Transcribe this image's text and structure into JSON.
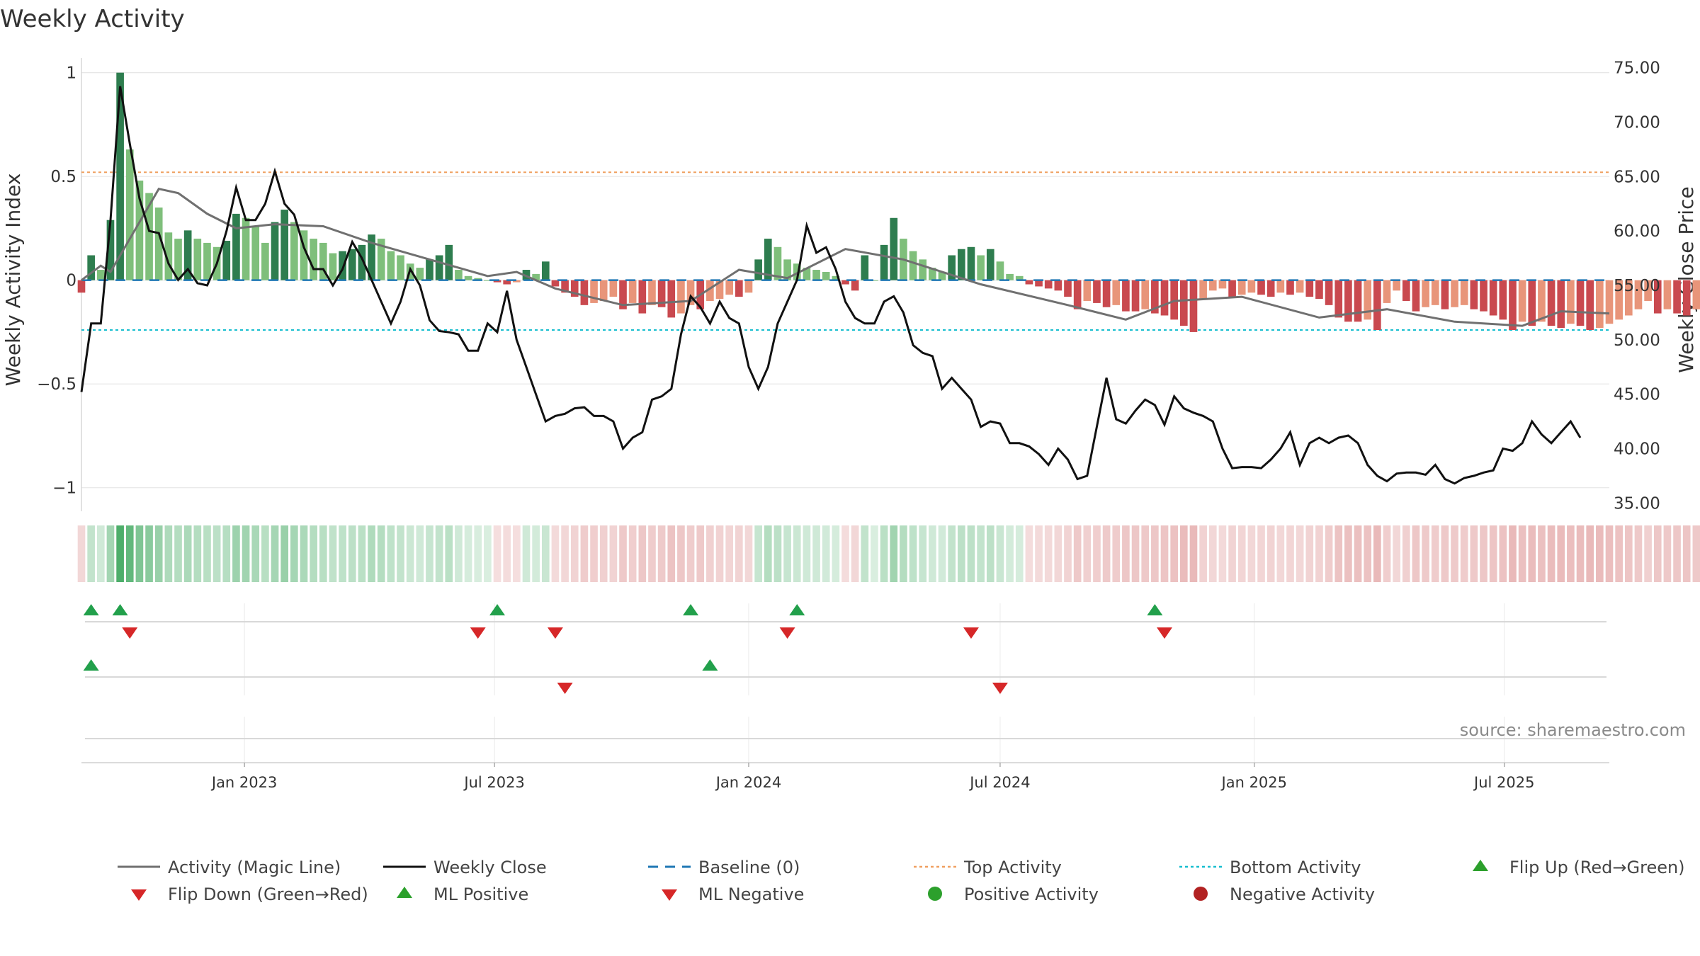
{
  "chart_data": {
    "type": "bar",
    "title": "Weekly Activity",
    "ylabel": "Weekly Activity Index",
    "y2label": "Weekly Close Price",
    "ylim": [
      -1.1,
      1.05
    ],
    "y2lim": [
      34.5,
      75.5
    ],
    "yticks": [
      {
        "value": 1,
        "label": "1"
      },
      {
        "value": 0.5,
        "label": "0.5"
      },
      {
        "value": 0,
        "label": "0"
      },
      {
        "value": -0.5,
        "label": "−0.5"
      },
      {
        "value": -1,
        "label": "−1"
      }
    ],
    "y2ticks": [
      {
        "value": 75,
        "label": "75.00"
      },
      {
        "value": 70,
        "label": "70.00"
      },
      {
        "value": 65,
        "label": "65.00"
      },
      {
        "value": 60,
        "label": "60.00"
      },
      {
        "value": 55,
        "label": "55.00"
      },
      {
        "value": 50,
        "label": "50.00"
      },
      {
        "value": 45,
        "label": "45.00"
      },
      {
        "value": 40,
        "label": "40.00"
      },
      {
        "value": 35,
        "label": "35.00"
      }
    ],
    "x_start": "2022-09-05",
    "x_end": "2025-09-15",
    "xticks": [
      {
        "date": "2023-01-01",
        "label": "Jan 2023"
      },
      {
        "date": "2023-07-01",
        "label": "Jul 2023"
      },
      {
        "date": "2024-01-01",
        "label": "Jan 2024"
      },
      {
        "date": "2024-07-01",
        "label": "Jul 2024"
      },
      {
        "date": "2025-01-01",
        "label": "Jan 2025"
      },
      {
        "date": "2025-07-01",
        "label": "Jul 2025"
      }
    ],
    "thresholds": {
      "top": 0.52,
      "bottom": -0.24,
      "baseline": 0
    },
    "series": [
      {
        "name": "Weekly Activity",
        "start": "2022-09-05",
        "step_days": 7,
        "values": [
          -0.06,
          0.12,
          0.05,
          0.29,
          1.0,
          0.63,
          0.48,
          0.42,
          0.35,
          0.23,
          0.2,
          0.24,
          0.2,
          0.18,
          0.16,
          0.19,
          0.32,
          0.3,
          0.26,
          0.18,
          0.28,
          0.34,
          0.28,
          0.24,
          0.2,
          0.18,
          0.13,
          0.14,
          0.15,
          0.17,
          0.22,
          0.2,
          0.14,
          0.12,
          0.08,
          0.06,
          0.1,
          0.12,
          0.17,
          0.05,
          0.02,
          0.01,
          0.0,
          -0.01,
          -0.02,
          -0.01,
          0.05,
          0.03,
          0.09,
          -0.03,
          -0.06,
          -0.08,
          -0.12,
          -0.11,
          -0.1,
          -0.08,
          -0.14,
          -0.11,
          -0.16,
          -0.12,
          -0.13,
          -0.18,
          -0.16,
          -0.12,
          -0.14,
          -0.1,
          -0.09,
          -0.07,
          -0.08,
          -0.06,
          0.1,
          0.2,
          0.16,
          0.1,
          0.08,
          0.06,
          0.05,
          0.04,
          0.02,
          -0.02,
          -0.05,
          0.12,
          0.0,
          0.17,
          0.3,
          0.2,
          0.14,
          0.1,
          0.06,
          0.04,
          0.12,
          0.15,
          0.16,
          0.12,
          0.15,
          0.09,
          0.03,
          0.02,
          -0.02,
          -0.03,
          -0.04,
          -0.05,
          -0.08,
          -0.14,
          -0.1,
          -0.11,
          -0.13,
          -0.12,
          -0.15,
          -0.15,
          -0.14,
          -0.16,
          -0.17,
          -0.19,
          -0.22,
          -0.25,
          -0.09,
          -0.05,
          -0.04,
          -0.08,
          -0.07,
          -0.06,
          -0.07,
          -0.08,
          -0.06,
          -0.07,
          -0.06,
          -0.08,
          -0.09,
          -0.12,
          -0.18,
          -0.2,
          -0.2,
          -0.19,
          -0.24,
          -0.11,
          -0.05,
          -0.1,
          -0.15,
          -0.13,
          -0.12,
          -0.14,
          -0.13,
          -0.12,
          -0.14,
          -0.15,
          -0.17,
          -0.19,
          -0.24,
          -0.2,
          -0.22,
          -0.2,
          -0.22,
          -0.23,
          -0.21,
          -0.22,
          -0.24,
          -0.23,
          -0.21,
          -0.19,
          -0.17,
          -0.14,
          -0.1,
          -0.16,
          -0.14,
          -0.16,
          -0.17,
          -0.14,
          -0.19
        ]
      },
      {
        "name": "Weekly Close",
        "start": "2022-09-05",
        "step_days": 7,
        "values": [
          45.2,
          51.5,
          51.5,
          61.0,
          73.3,
          68.0,
          63.0,
          60.0,
          59.8,
          57.0,
          55.5,
          56.5,
          55.2,
          55.0,
          57.0,
          60.0,
          64.0,
          61.0,
          61.0,
          62.5,
          65.5,
          62.5,
          61.5,
          58.5,
          56.5,
          56.5,
          55.0,
          56.5,
          59.0,
          57.5,
          55.5,
          53.5,
          51.5,
          53.5,
          56.5,
          55.0,
          51.8,
          50.8,
          50.7,
          50.5,
          49.0,
          49.0,
          51.5,
          50.7,
          54.5,
          50.0,
          47.5,
          45.0,
          42.5,
          43.0,
          43.2,
          43.7,
          43.8,
          43.0,
          43.0,
          42.5,
          40.0,
          41.0,
          41.5,
          44.5,
          44.8,
          45.5,
          50.5,
          54.0,
          53.0,
          51.5,
          53.5,
          52.0,
          51.5,
          47.5,
          45.5,
          47.5,
          51.5,
          53.5,
          55.5,
          60.5,
          58.0,
          58.5,
          56.5,
          53.5,
          52.0,
          51.5,
          51.5,
          53.5,
          54.0,
          52.5,
          49.5,
          48.8,
          48.5,
          45.5,
          46.5,
          45.5,
          44.5,
          42.0,
          42.5,
          42.3,
          40.5,
          40.5,
          40.2,
          39.5,
          38.5,
          40.0,
          39.0,
          37.2,
          37.5,
          42.0,
          46.5,
          42.7,
          42.3,
          43.5,
          44.5,
          44.0,
          42.2,
          44.8,
          43.7,
          43.3,
          43.0,
          42.5,
          40.0,
          38.2,
          38.3,
          38.3,
          38.2,
          39.0,
          40.0,
          41.5,
          38.5,
          40.5,
          41.0,
          40.5,
          41.0,
          41.2,
          40.5,
          38.5,
          37.5,
          37.0,
          37.7,
          37.8,
          37.8,
          37.6,
          38.5,
          37.2,
          36.8,
          37.3,
          37.5,
          37.8,
          38.0,
          40.0,
          39.8,
          40.5,
          42.5,
          41.3,
          40.5,
          41.5,
          42.5,
          41.0
        ]
      },
      {
        "name": "Activity (Magic Line)",
        "points": [
          {
            "x": "2022-09-05",
            "y": 0.0
          },
          {
            "x": "2022-09-19",
            "y": 0.07
          },
          {
            "x": "2022-09-26",
            "y": 0.04
          },
          {
            "x": "2022-10-10",
            "y": 0.2
          },
          {
            "x": "2022-10-31",
            "y": 0.44
          },
          {
            "x": "2022-11-14",
            "y": 0.42
          },
          {
            "x": "2022-12-05",
            "y": 0.32
          },
          {
            "x": "2022-12-26",
            "y": 0.25
          },
          {
            "x": "2023-01-23",
            "y": 0.27
          },
          {
            "x": "2023-02-27",
            "y": 0.26
          },
          {
            "x": "2023-04-03",
            "y": 0.18
          },
          {
            "x": "2023-05-15",
            "y": 0.1
          },
          {
            "x": "2023-06-26",
            "y": 0.02
          },
          {
            "x": "2023-07-17",
            "y": 0.04
          },
          {
            "x": "2023-08-14",
            "y": -0.04
          },
          {
            "x": "2023-10-02",
            "y": -0.12
          },
          {
            "x": "2023-11-20",
            "y": -0.1
          },
          {
            "x": "2023-12-25",
            "y": 0.05
          },
          {
            "x": "2024-01-29",
            "y": 0.01
          },
          {
            "x": "2024-03-11",
            "y": 0.15
          },
          {
            "x": "2024-04-22",
            "y": 0.1
          },
          {
            "x": "2024-06-17",
            "y": -0.02
          },
          {
            "x": "2024-08-19",
            "y": -0.12
          },
          {
            "x": "2024-09-30",
            "y": -0.19
          },
          {
            "x": "2024-11-04",
            "y": -0.1
          },
          {
            "x": "2024-12-23",
            "y": -0.08
          },
          {
            "x": "2025-02-17",
            "y": -0.18
          },
          {
            "x": "2025-04-07",
            "y": -0.14
          },
          {
            "x": "2025-05-26",
            "y": -0.2
          },
          {
            "x": "2025-07-14",
            "y": -0.22
          },
          {
            "x": "2025-08-11",
            "y": -0.15
          },
          {
            "x": "2025-09-15",
            "y": -0.16
          }
        ]
      }
    ],
    "flip_up": [
      "2022-09-12",
      "2022-10-03",
      "2023-07-03",
      "2023-11-20",
      "2024-02-05",
      "2024-10-21"
    ],
    "flip_down": [
      "2022-10-10",
      "2023-06-19",
      "2023-08-14",
      "2024-01-29",
      "2024-06-10",
      "2024-10-28"
    ],
    "ml_positive": [
      "2022-09-12",
      "2023-12-04"
    ],
    "ml_negative": [
      "2023-08-21",
      "2024-07-01"
    ],
    "legend": [
      {
        "label": "Activity (Magic Line)",
        "kind": "line",
        "color": "#707070"
      },
      {
        "label": "Weekly Close",
        "kind": "line",
        "color": "#111111"
      },
      {
        "label": "Baseline (0)",
        "kind": "dash",
        "color": "#1f77b4"
      },
      {
        "label": "Top Activity",
        "kind": "dot",
        "color": "#f0a060"
      },
      {
        "label": "Bottom Activity",
        "kind": "dot",
        "color": "#17becf"
      },
      {
        "label": "Flip Up (Red→Green)",
        "kind": "tri-up",
        "color": "#2ca02c"
      },
      {
        "label": "Flip Down (Green→Red)",
        "kind": "tri-down",
        "color": "#d62728"
      },
      {
        "label": "ML Positive",
        "kind": "tri-up",
        "color": "#2ca02c"
      },
      {
        "label": "ML Negative",
        "kind": "tri-down",
        "color": "#d62728"
      },
      {
        "label": "Positive Activity",
        "kind": "circle",
        "color": "#2ca02c"
      },
      {
        "label": "Negative Activity",
        "kind": "circle",
        "color": "#b22222"
      }
    ],
    "source": "source: sharemaestro.com",
    "colors": {
      "pos_strong": "#2e7d4f",
      "pos_light": "#7fbf7b",
      "neg_strong": "#c9494f",
      "neg_light": "#e8957a",
      "magic": "#707070",
      "close": "#111111",
      "baseline": "#1f77b4",
      "top": "#f0a060",
      "bottom": "#17becf",
      "flip_up": "#22a04b",
      "flip_down": "#d62728",
      "grid": "#e6e6e6"
    }
  }
}
